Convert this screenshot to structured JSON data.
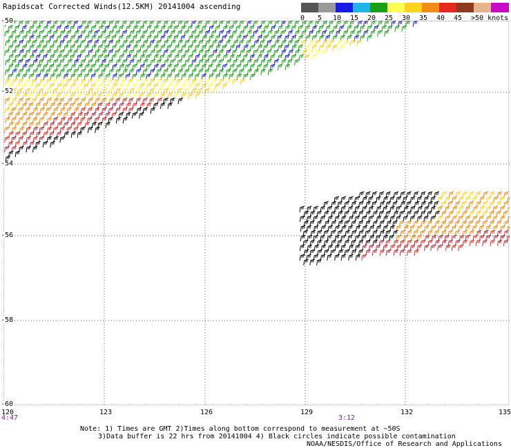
{
  "title": "Rapidscat Corrected Winds(12.5KM) 20141004 ascending",
  "legend": {
    "colors": [
      "#555555",
      "#9a9a9a",
      "#1a1ae6",
      "#1fb3e6",
      "#18a018",
      "#ffff55",
      "#ffd21e",
      "#f28c14",
      "#e6281e",
      "#8c3a20",
      "#e6b48c",
      "#c80ac8",
      "#5a0ab4"
    ],
    "labels": [
      "0",
      "5",
      "10",
      "15",
      "20",
      "25",
      "30",
      "35",
      "40",
      "45",
      ">50 knots"
    ]
  },
  "map": {
    "lat_labels": [
      "-50",
      "-52",
      "-54",
      "-56",
      "-58",
      "-60"
    ],
    "lon_labels": [
      "120",
      "123",
      "126",
      "129",
      "132",
      "135"
    ],
    "time_left": "4:47",
    "time_mid": "3:12"
  },
  "notes": {
    "line1": "Note: 1) Times are GMT 2)Times along bottom correspond to measurement at ~50S",
    "line2": "3)Data buffer is 22 hrs from 20141004 4) Black circles indicate possible contamination",
    "line3": "NOAA/NESDIS/Office of Research and Applications"
  }
}
